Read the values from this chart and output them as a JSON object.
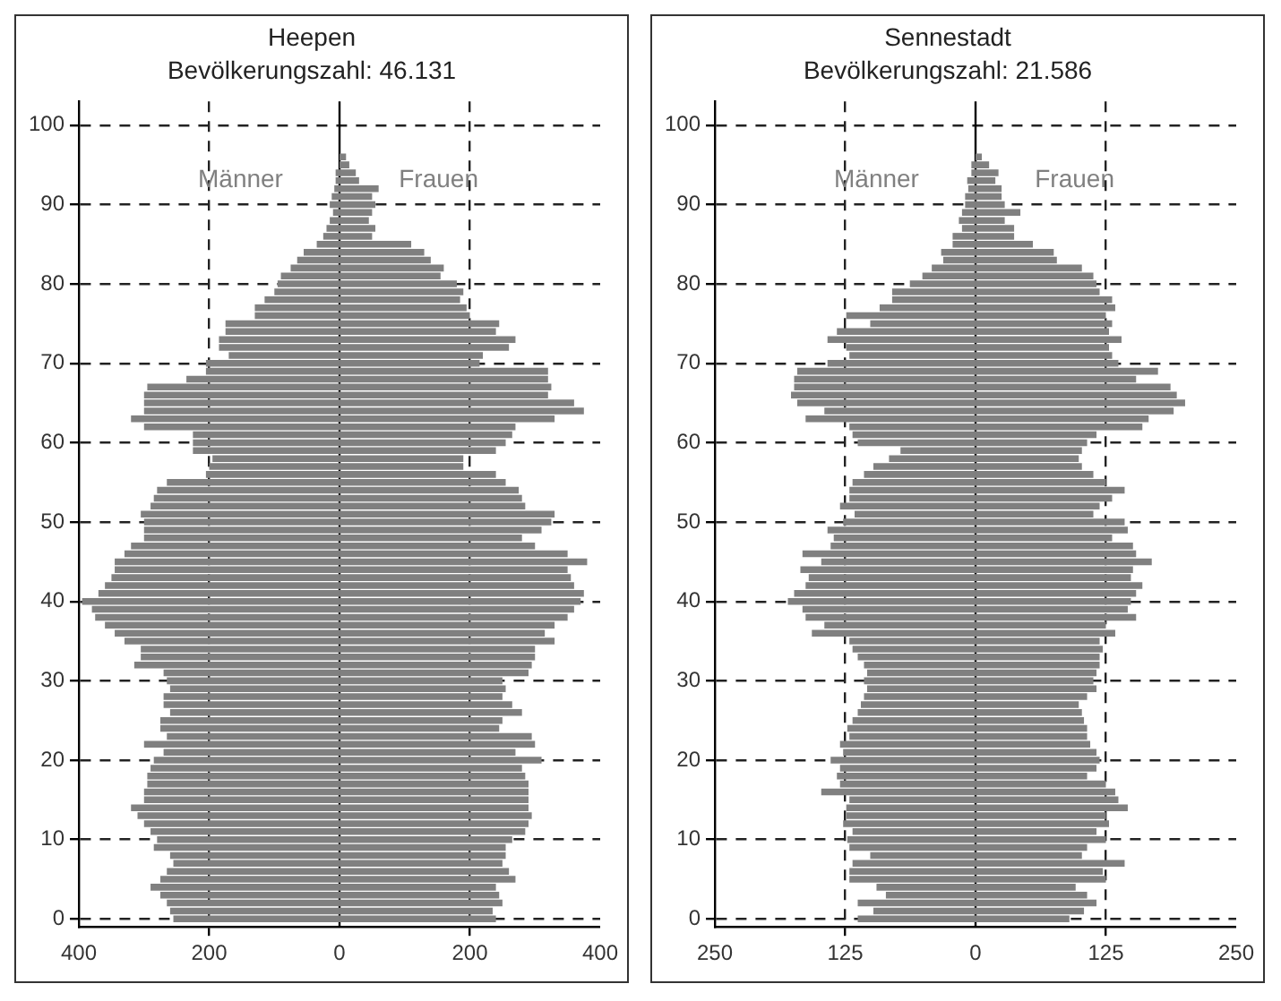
{
  "chart_data": [
    {
      "type": "bar",
      "title": "Heepen",
      "subtitle": "Bevölkerungszahl: 46.131",
      "orientation": "horizontal",
      "stacked": true,
      "legend": false,
      "grid": true,
      "ref_lines": [
        {
          "axis": "x",
          "value": 0,
          "color": "#000000"
        }
      ],
      "x": [
        0,
        1,
        2,
        3,
        4,
        5,
        6,
        7,
        8,
        9,
        10,
        11,
        12,
        13,
        14,
        15,
        16,
        17,
        18,
        19,
        20,
        21,
        22,
        23,
        24,
        25,
        26,
        27,
        28,
        29,
        30,
        31,
        32,
        33,
        34,
        35,
        36,
        37,
        38,
        39,
        40,
        41,
        42,
        43,
        44,
        45,
        46,
        47,
        48,
        49,
        50,
        51,
        52,
        53,
        54,
        55,
        56,
        57,
        58,
        59,
        60,
        61,
        62,
        63,
        64,
        65,
        66,
        67,
        68,
        69,
        70,
        71,
        72,
        73,
        74,
        75,
        76,
        77,
        78,
        79,
        80,
        81,
        82,
        83,
        84,
        85,
        86,
        87,
        88,
        89,
        90,
        91,
        92,
        93,
        94,
        95,
        96,
        97,
        98,
        99,
        100
      ],
      "xlim": [
        -400,
        400
      ],
      "xticks": [
        {
          "value": -400,
          "label": "400"
        },
        {
          "value": -200,
          "label": "200"
        },
        0,
        200,
        400
      ],
      "ylim": [
        -1,
        103
      ],
      "yticks": [
        0,
        10,
        20,
        30,
        40,
        50,
        60,
        70,
        80,
        90,
        100
      ],
      "series": [
        {
          "name": "Männer",
          "color": "#808080",
          "values": [
            -255,
            -260,
            -265,
            -275,
            -290,
            -275,
            -265,
            -255,
            -260,
            -285,
            -280,
            -290,
            -300,
            -310,
            -320,
            -300,
            -300,
            -295,
            -295,
            -290,
            -285,
            -270,
            -300,
            -265,
            -275,
            -275,
            -260,
            -270,
            -270,
            -260,
            -265,
            -270,
            -315,
            -305,
            -305,
            -330,
            -345,
            -360,
            -375,
            -380,
            -395,
            -370,
            -360,
            -350,
            -345,
            -345,
            -330,
            -320,
            -300,
            -300,
            -300,
            -305,
            -290,
            -285,
            -280,
            -265,
            -205,
            -200,
            -195,
            -225,
            -225,
            -225,
            -300,
            -320,
            -300,
            -300,
            -300,
            -295,
            -235,
            -205,
            -205,
            -170,
            -185,
            -185,
            -175,
            -175,
            -130,
            -130,
            -115,
            -100,
            -95,
            -90,
            -75,
            -65,
            -55,
            -35,
            -25,
            -20,
            -15,
            -10,
            -15,
            -12,
            -8,
            -6,
            -6,
            0,
            0,
            0,
            0,
            0,
            0
          ]
        },
        {
          "name": "Frauen",
          "color": "#808080",
          "values": [
            240,
            235,
            250,
            245,
            240,
            270,
            260,
            250,
            255,
            255,
            265,
            285,
            290,
            295,
            290,
            290,
            290,
            290,
            285,
            280,
            310,
            270,
            300,
            295,
            245,
            250,
            280,
            265,
            250,
            255,
            250,
            290,
            295,
            300,
            300,
            330,
            315,
            330,
            350,
            360,
            370,
            375,
            360,
            355,
            350,
            380,
            350,
            300,
            280,
            310,
            325,
            330,
            285,
            280,
            275,
            255,
            240,
            190,
            190,
            240,
            255,
            265,
            270,
            330,
            375,
            360,
            320,
            325,
            320,
            320,
            215,
            220,
            260,
            270,
            240,
            245,
            200,
            195,
            185,
            190,
            180,
            155,
            160,
            140,
            130,
            110,
            50,
            55,
            45,
            50,
            55,
            50,
            60,
            30,
            25,
            15,
            10,
            0,
            0,
            0,
            0
          ]
        }
      ]
    },
    {
      "type": "bar",
      "title": "Sennestadt",
      "subtitle": "Bevölkerungszahl: 21.586",
      "orientation": "horizontal",
      "stacked": true,
      "legend": false,
      "grid": true,
      "ref_lines": [
        {
          "axis": "x",
          "value": 0,
          "color": "#000000"
        }
      ],
      "x": [
        0,
        1,
        2,
        3,
        4,
        5,
        6,
        7,
        8,
        9,
        10,
        11,
        12,
        13,
        14,
        15,
        16,
        17,
        18,
        19,
        20,
        21,
        22,
        23,
        24,
        25,
        26,
        27,
        28,
        29,
        30,
        31,
        32,
        33,
        34,
        35,
        36,
        37,
        38,
        39,
        40,
        41,
        42,
        43,
        44,
        45,
        46,
        47,
        48,
        49,
        50,
        51,
        52,
        53,
        54,
        55,
        56,
        57,
        58,
        59,
        60,
        61,
        62,
        63,
        64,
        65,
        66,
        67,
        68,
        69,
        70,
        71,
        72,
        73,
        74,
        75,
        76,
        77,
        78,
        79,
        80,
        81,
        82,
        83,
        84,
        85,
        86,
        87,
        88,
        89,
        90,
        91,
        92,
        93,
        94,
        95,
        96,
        97,
        98,
        99,
        100
      ],
      "xlim": [
        -250,
        250
      ],
      "xticks": [
        {
          "value": -250,
          "label": "250"
        },
        {
          "value": -125,
          "label": "125"
        },
        0,
        125,
        250
      ],
      "ylim": [
        -1,
        103
      ],
      "yticks": [
        0,
        10,
        20,
        30,
        40,
        50,
        60,
        70,
        80,
        90,
        100
      ],
      "series": [
        {
          "name": "Männer",
          "color": "#808080",
          "values": [
            -113,
            -98,
            -113,
            -86,
            -95,
            -121,
            -121,
            -118,
            -101,
            -121,
            -123,
            -118,
            -127,
            -124,
            -124,
            -121,
            -148,
            -130,
            -133,
            -130,
            -139,
            -127,
            -130,
            -121,
            -123,
            -118,
            -113,
            -110,
            -107,
            -104,
            -107,
            -104,
            -107,
            -113,
            -118,
            -121,
            -157,
            -145,
            -163,
            -166,
            -180,
            -174,
            -163,
            -160,
            -168,
            -148,
            -166,
            -139,
            -136,
            -142,
            -127,
            -116,
            -130,
            -121,
            -121,
            -118,
            -107,
            -98,
            -83,
            -72,
            -113,
            -118,
            -121,
            -163,
            -145,
            -171,
            -177,
            -174,
            -174,
            -171,
            -142,
            -121,
            -124,
            -142,
            -133,
            -101,
            -124,
            -92,
            -80,
            -80,
            -63,
            -51,
            -42,
            -31,
            -33,
            -22,
            -22,
            -13,
            -16,
            -13,
            -10,
            -10,
            -7,
            -8,
            -4,
            -4,
            0,
            0,
            0,
            0,
            0
          ]
        },
        {
          "name": "Frauen",
          "color": "#808080",
          "values": [
            90,
            104,
            116,
            107,
            96,
            125,
            122,
            143,
            102,
            107,
            125,
            116,
            128,
            125,
            146,
            137,
            134,
            125,
            107,
            116,
            119,
            116,
            110,
            107,
            107,
            104,
            102,
            99,
            107,
            116,
            113,
            116,
            119,
            119,
            122,
            119,
            134,
            125,
            154,
            146,
            149,
            154,
            160,
            149,
            151,
            169,
            154,
            151,
            131,
            146,
            143,
            113,
            119,
            131,
            143,
            125,
            113,
            102,
            99,
            102,
            107,
            116,
            160,
            166,
            190,
            201,
            193,
            187,
            154,
            175,
            137,
            131,
            128,
            140,
            128,
            131,
            125,
            134,
            131,
            119,
            116,
            113,
            102,
            78,
            75,
            55,
            37,
            37,
            28,
            43,
            28,
            25,
            25,
            19,
            22,
            13,
            6,
            0,
            0,
            0,
            0
          ]
        }
      ]
    }
  ]
}
